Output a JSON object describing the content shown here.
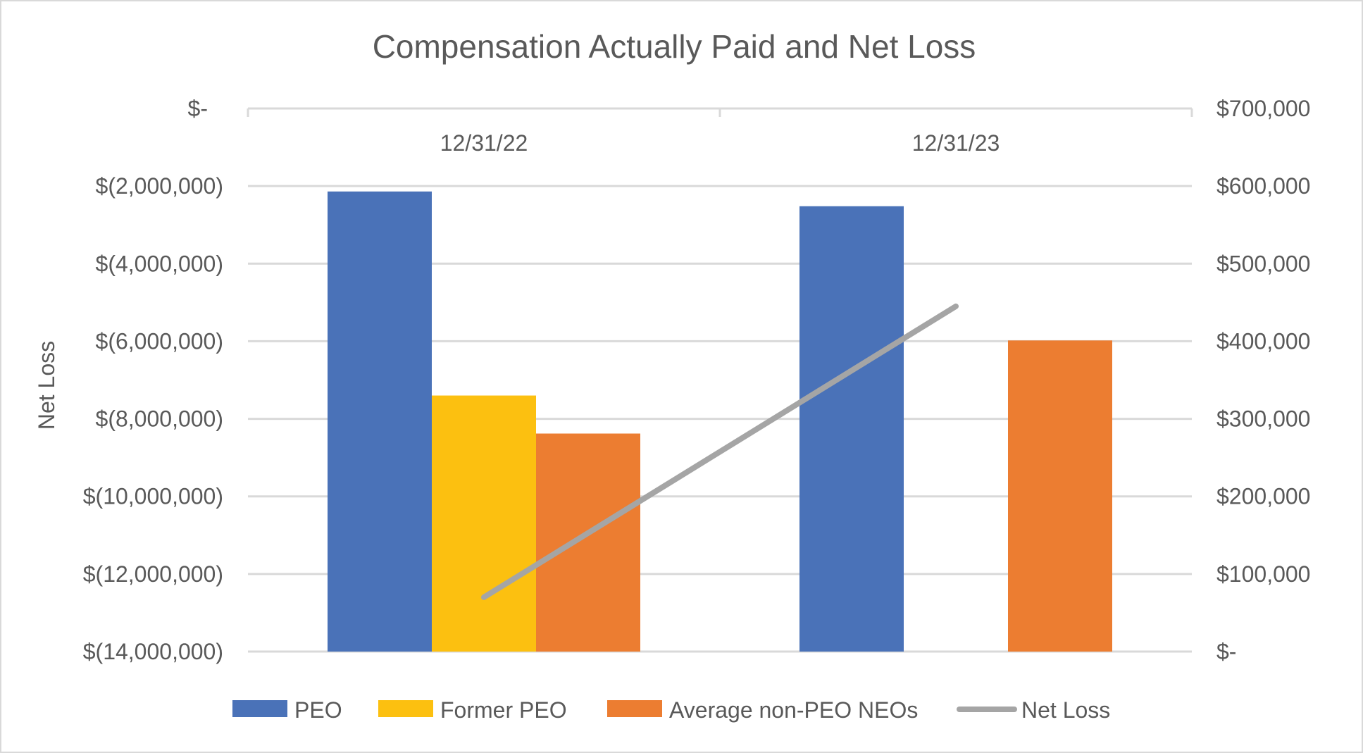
{
  "chart_data": {
    "type": "bar",
    "title": "Compensation Actually Paid and Net Loss",
    "categories": [
      "12/31/22",
      "12/31/23"
    ],
    "left_axis": {
      "title": "Net Loss",
      "ticks": [
        "$-",
        "$(2,000,000)",
        "$(4,000,000)",
        "$(6,000,000)",
        "$(8,000,000)",
        "$(10,000,000)",
        "$(12,000,000)",
        "$(14,000,000)"
      ],
      "tick_values": [
        0,
        -2000000,
        -4000000,
        -6000000,
        -8000000,
        -10000000,
        -12000000,
        -14000000
      ],
      "range": [
        -14000000,
        0
      ]
    },
    "right_axis": {
      "ticks": [
        "$700,000",
        "$600,000",
        "$500,000",
        "$400,000",
        "$300,000",
        "$200,000",
        "$100,000",
        "$-"
      ],
      "tick_values": [
        700000,
        600000,
        500000,
        400000,
        300000,
        200000,
        100000,
        0
      ],
      "range": [
        0,
        700000
      ]
    },
    "series": [
      {
        "name": "PEO",
        "kind": "bar",
        "axis": "right",
        "color": "#4a72b8",
        "values": [
          593000,
          574000
        ]
      },
      {
        "name": "Former PEO",
        "kind": "bar",
        "axis": "right",
        "color": "#fcc010",
        "values": [
          330000,
          null
        ]
      },
      {
        "name": "Average non-PEO NEOs",
        "kind": "bar",
        "axis": "right",
        "color": "#ec7d31",
        "values": [
          281000,
          401000
        ]
      },
      {
        "name": "Net Loss",
        "kind": "line",
        "axis": "left",
        "color": "#a5a5a5",
        "values": [
          -12600000,
          -5100000
        ]
      }
    ],
    "legend_position": "bottom",
    "grid": true
  }
}
